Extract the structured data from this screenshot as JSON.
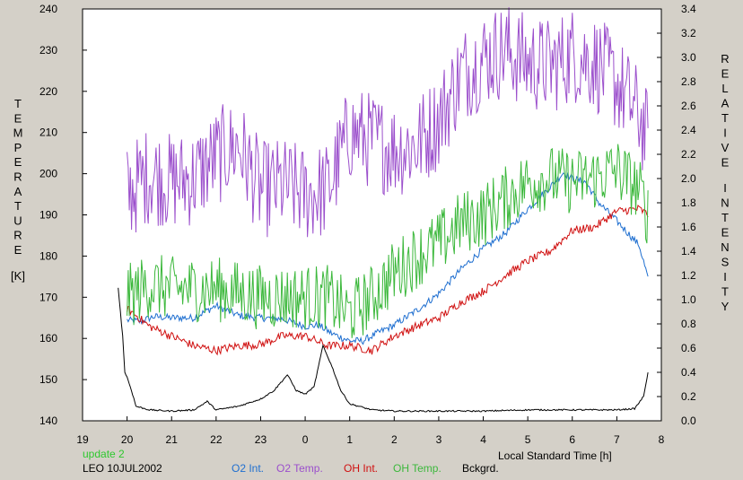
{
  "chart_data": {
    "type": "line",
    "left_axis": {
      "label_letters": [
        "T",
        "E",
        "M",
        "P",
        "E",
        "R",
        "A",
        "T",
        "U",
        "R",
        "E"
      ],
      "unit": "[K]",
      "ticks": [
        "240",
        "230",
        "220",
        "210",
        "200",
        "190",
        "180",
        "170",
        "160",
        "150",
        "140"
      ],
      "range": [
        140,
        240
      ]
    },
    "right_axis": {
      "label_word1_letters": [
        "R",
        "E",
        "L",
        "A",
        "T",
        "I",
        "V",
        "E"
      ],
      "label_word2_letters": [
        "I",
        "N",
        "T",
        "E",
        "N",
        "S",
        "I",
        "T",
        "Y"
      ],
      "ticks": [
        "3.4",
        "3.2",
        "3.0",
        "2.8",
        "2.6",
        "2.4",
        "2.2",
        "2.0",
        "1.8",
        "1.6",
        "1.4",
        "1.2",
        "1.0",
        "0.8",
        "0.6",
        "0.4",
        "0.2",
        "0.0"
      ],
      "range": [
        0.0,
        3.4
      ]
    },
    "x_axis": {
      "ticks": [
        "19",
        "20",
        "21",
        "22",
        "23",
        "0",
        "1",
        "2",
        "3",
        "4",
        "5",
        "6",
        "7",
        "8"
      ],
      "label": "Local Standard Time [h]",
      "range_hours": [
        19,
        32
      ]
    },
    "footer": {
      "update_text": "update 2",
      "station_text": "LEO 10JUL2002"
    },
    "series": [
      {
        "name": "O2 Int.",
        "axis": "right",
        "color": "#1f6fd0",
        "x": [
          20.0,
          20.3,
          20.6,
          21.0,
          21.5,
          22.0,
          22.5,
          23.0,
          23.5,
          24.0,
          24.3,
          24.6,
          25.0,
          25.3,
          25.6,
          26.0,
          26.5,
          27.0,
          27.5,
          28.0,
          28.5,
          29.0,
          29.5,
          29.8,
          30.0,
          30.3,
          30.6,
          31.0,
          31.5,
          31.7
        ],
        "y": [
          0.83,
          0.82,
          0.86,
          0.85,
          0.85,
          0.95,
          0.87,
          0.85,
          0.84,
          0.78,
          0.79,
          0.72,
          0.66,
          0.66,
          0.72,
          0.79,
          0.91,
          1.05,
          1.25,
          1.42,
          1.55,
          1.75,
          1.93,
          2.05,
          2.0,
          1.97,
          1.8,
          1.65,
          1.45,
          1.18
        ]
      },
      {
        "name": "O2 Temp.",
        "axis": "left",
        "color": "#9b4fcc",
        "x": [
          20.0,
          20.5,
          21.0,
          21.5,
          22.0,
          22.5,
          23.0,
          23.5,
          24.0,
          24.5,
          25.0,
          25.5,
          26.0,
          26.5,
          27.0,
          27.5,
          28.0,
          28.5,
          29.0,
          29.5,
          30.0,
          30.5,
          31.0,
          31.5,
          31.7
        ],
        "y": [
          195,
          200,
          198,
          199,
          204,
          207,
          196,
          197,
          195,
          196,
          210,
          208,
          206,
          207,
          213,
          224,
          228,
          230,
          227,
          226,
          229,
          227,
          222,
          214,
          208
        ]
      },
      {
        "name": "OH Int.",
        "axis": "right",
        "color": "#d01010",
        "x": [
          20.0,
          20.5,
          21.0,
          21.5,
          22.0,
          22.5,
          23.0,
          23.5,
          24.0,
          24.5,
          25.0,
          25.5,
          26.0,
          26.5,
          27.0,
          27.5,
          28.0,
          28.5,
          29.0,
          29.5,
          30.0,
          30.5,
          31.0,
          31.5,
          31.7
        ],
        "y": [
          0.93,
          0.78,
          0.7,
          0.62,
          0.58,
          0.62,
          0.63,
          0.7,
          0.7,
          0.62,
          0.62,
          0.58,
          0.7,
          0.78,
          0.85,
          0.98,
          1.07,
          1.2,
          1.32,
          1.4,
          1.57,
          1.6,
          1.73,
          1.75,
          1.7
        ]
      },
      {
        "name": "OH Temp.",
        "axis": "left",
        "color": "#3cb83c",
        "x": [
          20.0,
          20.5,
          21.0,
          21.5,
          22.0,
          22.5,
          23.0,
          23.5,
          24.0,
          24.5,
          25.0,
          25.5,
          26.0,
          26.5,
          27.0,
          27.5,
          28.0,
          28.5,
          29.0,
          29.5,
          30.0,
          30.5,
          31.0,
          31.5,
          31.7
        ],
        "y": [
          170,
          173,
          172,
          172,
          172,
          171,
          170,
          170,
          170,
          170,
          166,
          170,
          176,
          180,
          183,
          188,
          190,
          194,
          198,
          199,
          198,
          199,
          201,
          196,
          190
        ]
      },
      {
        "name": "Bckgrd.",
        "axis": "right",
        "color": "#000000",
        "x": [
          19.8,
          19.9,
          19.95,
          20.0,
          20.1,
          20.2,
          20.5,
          21.0,
          21.5,
          21.8,
          22.0,
          22.5,
          23.0,
          23.3,
          23.6,
          23.8,
          24.0,
          24.2,
          24.4,
          24.6,
          24.8,
          25.0,
          25.5,
          26.0,
          27.0,
          28.0,
          29.0,
          30.0,
          31.0,
          31.4,
          31.6,
          31.7
        ],
        "y": [
          1.1,
          0.7,
          0.4,
          0.36,
          0.25,
          0.12,
          0.09,
          0.08,
          0.09,
          0.16,
          0.09,
          0.12,
          0.18,
          0.25,
          0.38,
          0.25,
          0.22,
          0.28,
          0.62,
          0.45,
          0.25,
          0.14,
          0.09,
          0.08,
          0.08,
          0.08,
          0.09,
          0.09,
          0.09,
          0.1,
          0.2,
          0.4
        ]
      }
    ]
  }
}
